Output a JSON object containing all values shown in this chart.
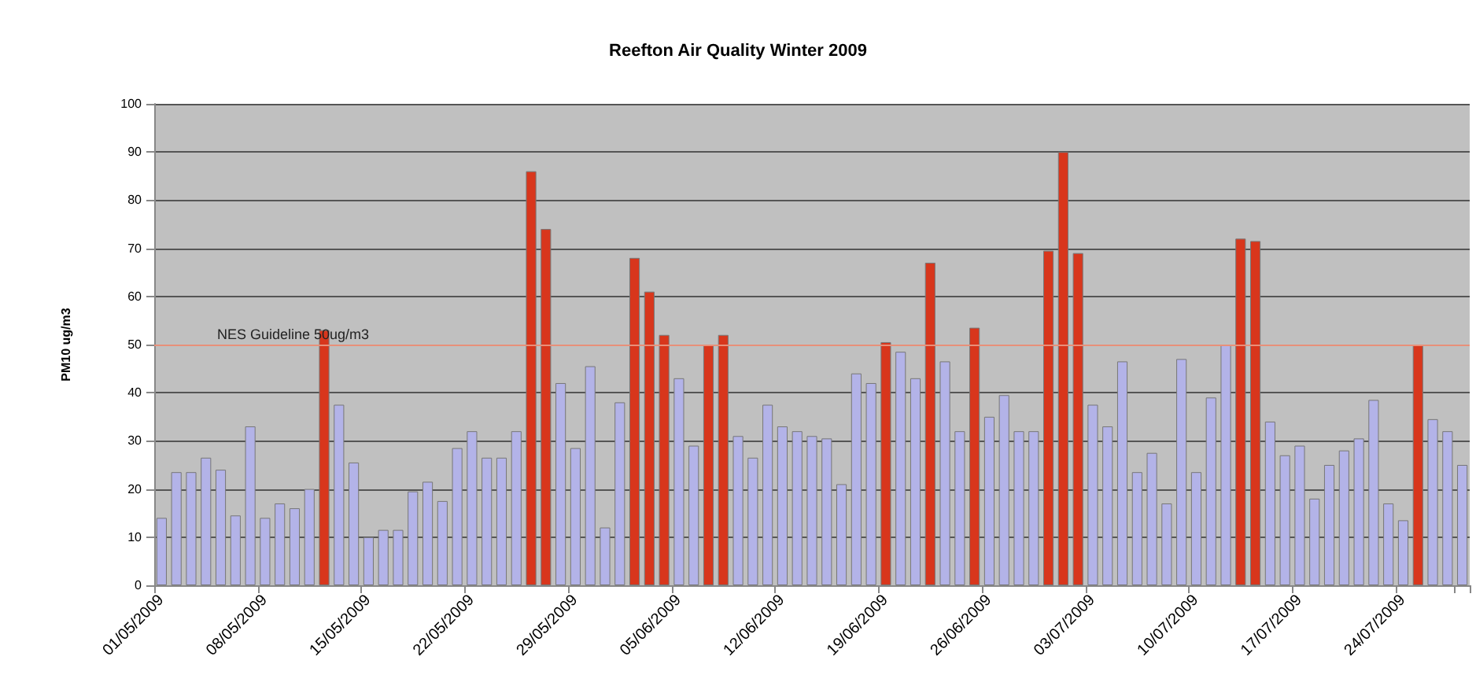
{
  "chart_data": {
    "type": "bar",
    "title": "Reefton Air Quality Winter 2009",
    "ylabel": "PM10 ug/m3",
    "categories": [
      "01/05/2009",
      null,
      null,
      null,
      null,
      null,
      null,
      "08/05/2009",
      null,
      null,
      null,
      null,
      null,
      null,
      "15/05/2009",
      null,
      null,
      null,
      null,
      null,
      null,
      "22/05/2009",
      null,
      null,
      null,
      null,
      null,
      null,
      "29/05/2009",
      null,
      null,
      null,
      null,
      null,
      null,
      "05/06/2009",
      null,
      null,
      null,
      null,
      null,
      null,
      "12/06/2009",
      null,
      null,
      null,
      null,
      null,
      null,
      "19/06/2009",
      null,
      null,
      null,
      null,
      null,
      null,
      "26/06/2009",
      null,
      null,
      null,
      null,
      null,
      null,
      "03/07/2009",
      null,
      null,
      null,
      null,
      null,
      null,
      "10/07/2009",
      null,
      null,
      null,
      null,
      null,
      null,
      "17/07/2009",
      null,
      null,
      null,
      null,
      null,
      null,
      "24/07/2009",
      null,
      null,
      null,
      null
    ],
    "values": [
      14,
      23.5,
      23.5,
      26.5,
      24,
      14.5,
      33,
      14,
      17,
      16,
      20,
      53,
      37.5,
      25.5,
      10,
      11.5,
      11.5,
      19.5,
      21.5,
      17.5,
      28.5,
      32,
      26.5,
      26.5,
      32,
      86,
      74,
      42,
      28.5,
      45.5,
      12,
      38,
      68,
      61,
      52,
      43,
      29,
      50,
      52,
      31,
      26.5,
      37.5,
      33,
      32,
      31,
      30.5,
      21,
      44,
      42,
      50.5,
      48.5,
      43,
      67,
      46.5,
      32,
      53.5,
      35,
      39.5,
      32,
      32,
      69.5,
      90,
      69,
      37.5,
      33,
      46.5,
      23.5,
      27.5,
      17,
      47,
      23.5,
      39,
      50,
      72,
      71.5,
      34,
      27,
      29,
      18,
      25,
      28,
      30.5,
      38.5,
      17,
      13.5,
      50,
      34.5,
      32,
      25
    ],
    "colors": [
      "#b3b3e8",
      "#b3b3e8",
      "#b3b3e8",
      "#b3b3e8",
      "#b3b3e8",
      "#b3b3e8",
      "#b3b3e8",
      "#b3b3e8",
      "#b3b3e8",
      "#b3b3e8",
      "#b3b3e8",
      "#d8361c",
      "#b3b3e8",
      "#b3b3e8",
      "#b3b3e8",
      "#b3b3e8",
      "#b3b3e8",
      "#b3b3e8",
      "#b3b3e8",
      "#b3b3e8",
      "#b3b3e8",
      "#b3b3e8",
      "#b3b3e8",
      "#b3b3e8",
      "#b3b3e8",
      "#d8361c",
      "#d8361c",
      "#b3b3e8",
      "#b3b3e8",
      "#b3b3e8",
      "#b3b3e8",
      "#b3b3e8",
      "#d8361c",
      "#d8361c",
      "#d8361c",
      "#b3b3e8",
      "#b3b3e8",
      "#d8361c",
      "#d8361c",
      "#b3b3e8",
      "#b3b3e8",
      "#b3b3e8",
      "#b3b3e8",
      "#b3b3e8",
      "#b3b3e8",
      "#b3b3e8",
      "#b3b3e8",
      "#b3b3e8",
      "#b3b3e8",
      "#d8361c",
      "#b3b3e8",
      "#b3b3e8",
      "#d8361c",
      "#b3b3e8",
      "#b3b3e8",
      "#d8361c",
      "#b3b3e8",
      "#b3b3e8",
      "#b3b3e8",
      "#b3b3e8",
      "#d8361c",
      "#d8361c",
      "#d8361c",
      "#b3b3e8",
      "#b3b3e8",
      "#b3b3e8",
      "#b3b3e8",
      "#b3b3e8",
      "#b3b3e8",
      "#b3b3e8",
      "#b3b3e8",
      "#b3b3e8",
      "#b3b3e8",
      "#d8361c",
      "#d8361c",
      "#b3b3e8",
      "#b3b3e8",
      "#b3b3e8",
      "#b3b3e8",
      "#b3b3e8",
      "#b3b3e8",
      "#b3b3e8",
      "#b3b3e8",
      "#b3b3e8",
      "#b3b3e8",
      "#d8361c",
      "#b3b3e8",
      "#b3b3e8",
      "#b3b3e8"
    ],
    "ylim": [
      0,
      100
    ],
    "yticks": [
      0,
      10,
      20,
      30,
      40,
      50,
      60,
      70,
      80,
      90,
      100
    ],
    "grid": "y",
    "ref_lines": [
      {
        "axis": "y",
        "value": 50,
        "label": "NES Guideline 50ug/m3",
        "color": "#e8907a"
      }
    ]
  }
}
